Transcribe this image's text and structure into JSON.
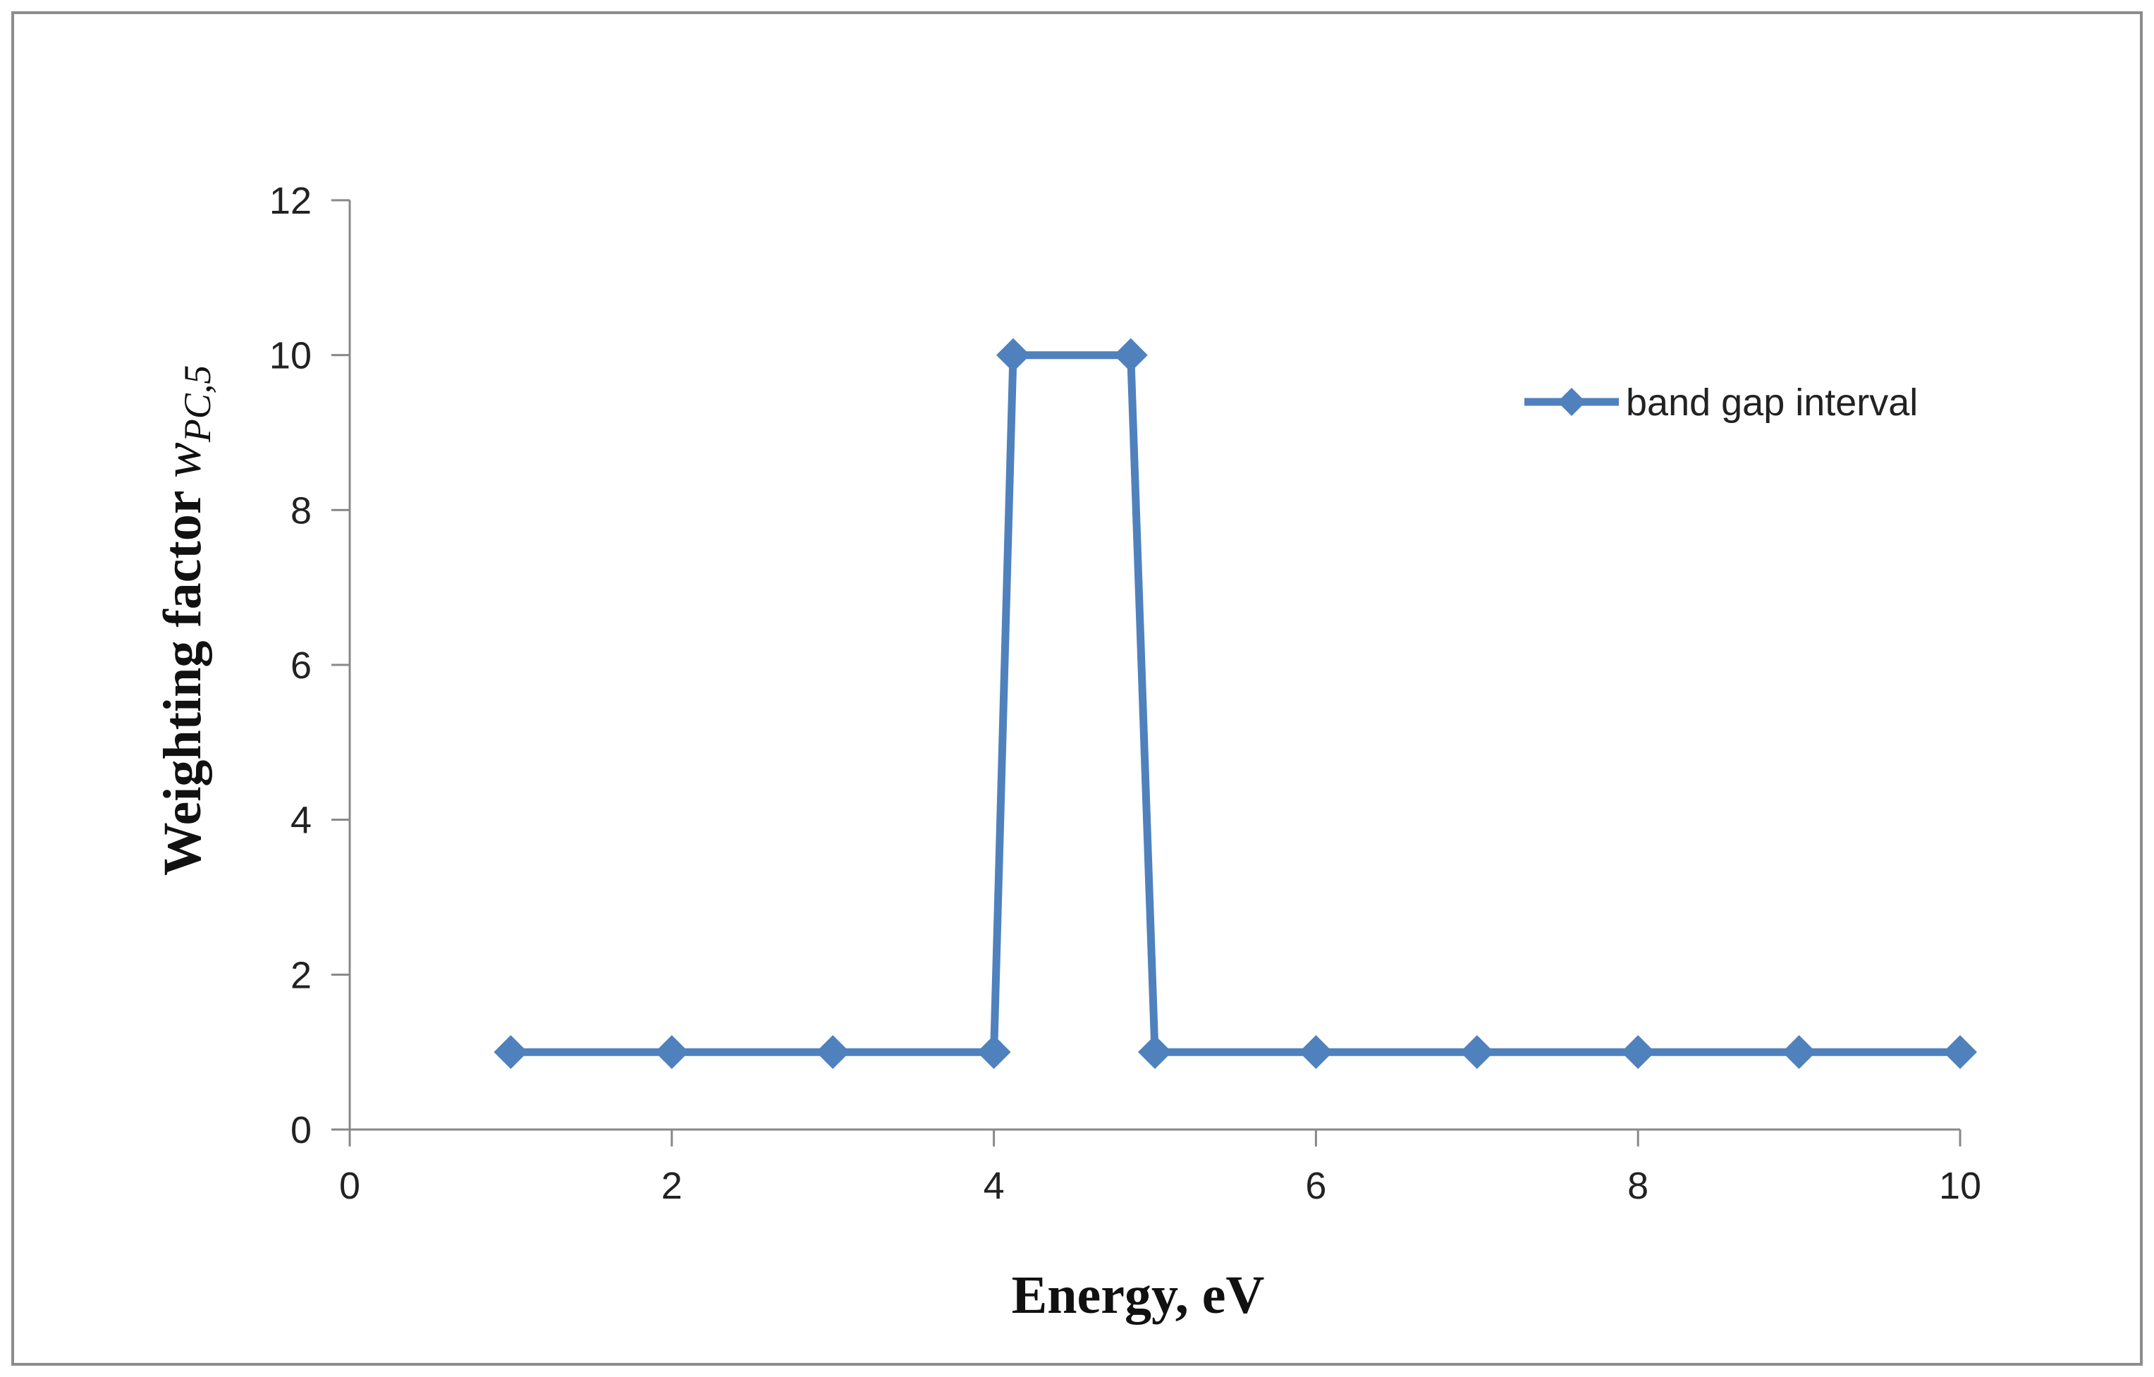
{
  "chart_data": {
    "type": "line",
    "title": "",
    "xlabel": "Energy, eV",
    "ylabel_main": "Weighting factor ",
    "ylabel_var": "w",
    "ylabel_sub": "PC,5",
    "xlim": [
      0,
      10
    ],
    "ylim": [
      0,
      12
    ],
    "x_ticks": [
      0,
      2,
      4,
      6,
      8,
      10
    ],
    "y_ticks": [
      0,
      2,
      4,
      6,
      8,
      10,
      12
    ],
    "grid": false,
    "legend_position": "top-right",
    "series": [
      {
        "name": "band gap interval",
        "color": "#4f81bd",
        "marker": "diamond",
        "x": [
          1,
          2,
          3,
          4,
          4.12,
          4.85,
          5,
          6,
          7,
          8,
          9,
          10
        ],
        "y": [
          1,
          1,
          1,
          1,
          10,
          10,
          1,
          1,
          1,
          1,
          1,
          1
        ]
      }
    ]
  }
}
